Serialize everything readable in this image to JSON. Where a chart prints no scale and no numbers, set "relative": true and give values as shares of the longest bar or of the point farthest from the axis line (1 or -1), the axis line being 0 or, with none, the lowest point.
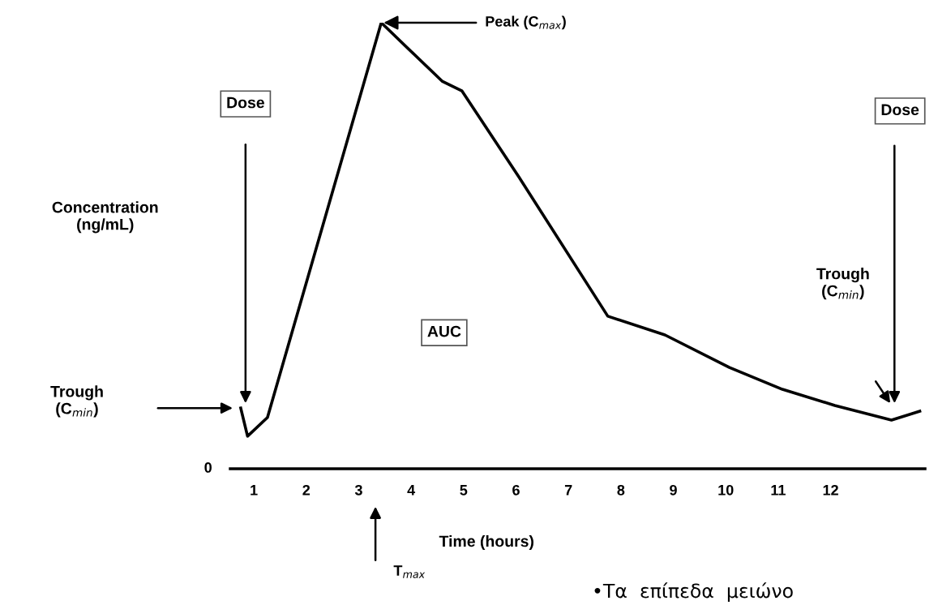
{
  "chart_data": {
    "type": "line",
    "relative": true,
    "xlabel": "Time (hours)",
    "ylabel": "Concentration\n(ng/mL)",
    "x": [
      0.75,
      0.88,
      1.26,
      3.43,
      4.59,
      4.97,
      6.05,
      7.75,
      8.84,
      10.07,
      11.08,
      12.08,
      13.16,
      13.7
    ],
    "series": [
      {
        "color": "#000000",
        "values": [
          0.136,
          0.073,
          0.115,
          1.0,
          0.869,
          0.847,
          0.655,
          0.342,
          0.3,
          0.227,
          0.178,
          0.142,
          0.109,
          0.129
        ]
      }
    ],
    "xlim": [
      0.55,
      13.8
    ],
    "xticks": [
      1,
      2,
      3,
      4,
      5,
      6,
      7,
      8,
      9,
      10,
      11,
      12
    ],
    "grid": false,
    "legend": false,
    "marker": "none",
    "line_style": "solid",
    "annotations": [
      "Dose",
      "Dose",
      {
        "text": "Peak (C$_{max}$)",
        "x": 3.43,
        "y": 1.0
      },
      "Trough\n(C$_{min}$)",
      "Trough\n(C$_{min}$)",
      "AUC",
      "T$_{max}$",
      "•Τα  επίπεδα  μειώνο",
      "0"
    ]
  }
}
